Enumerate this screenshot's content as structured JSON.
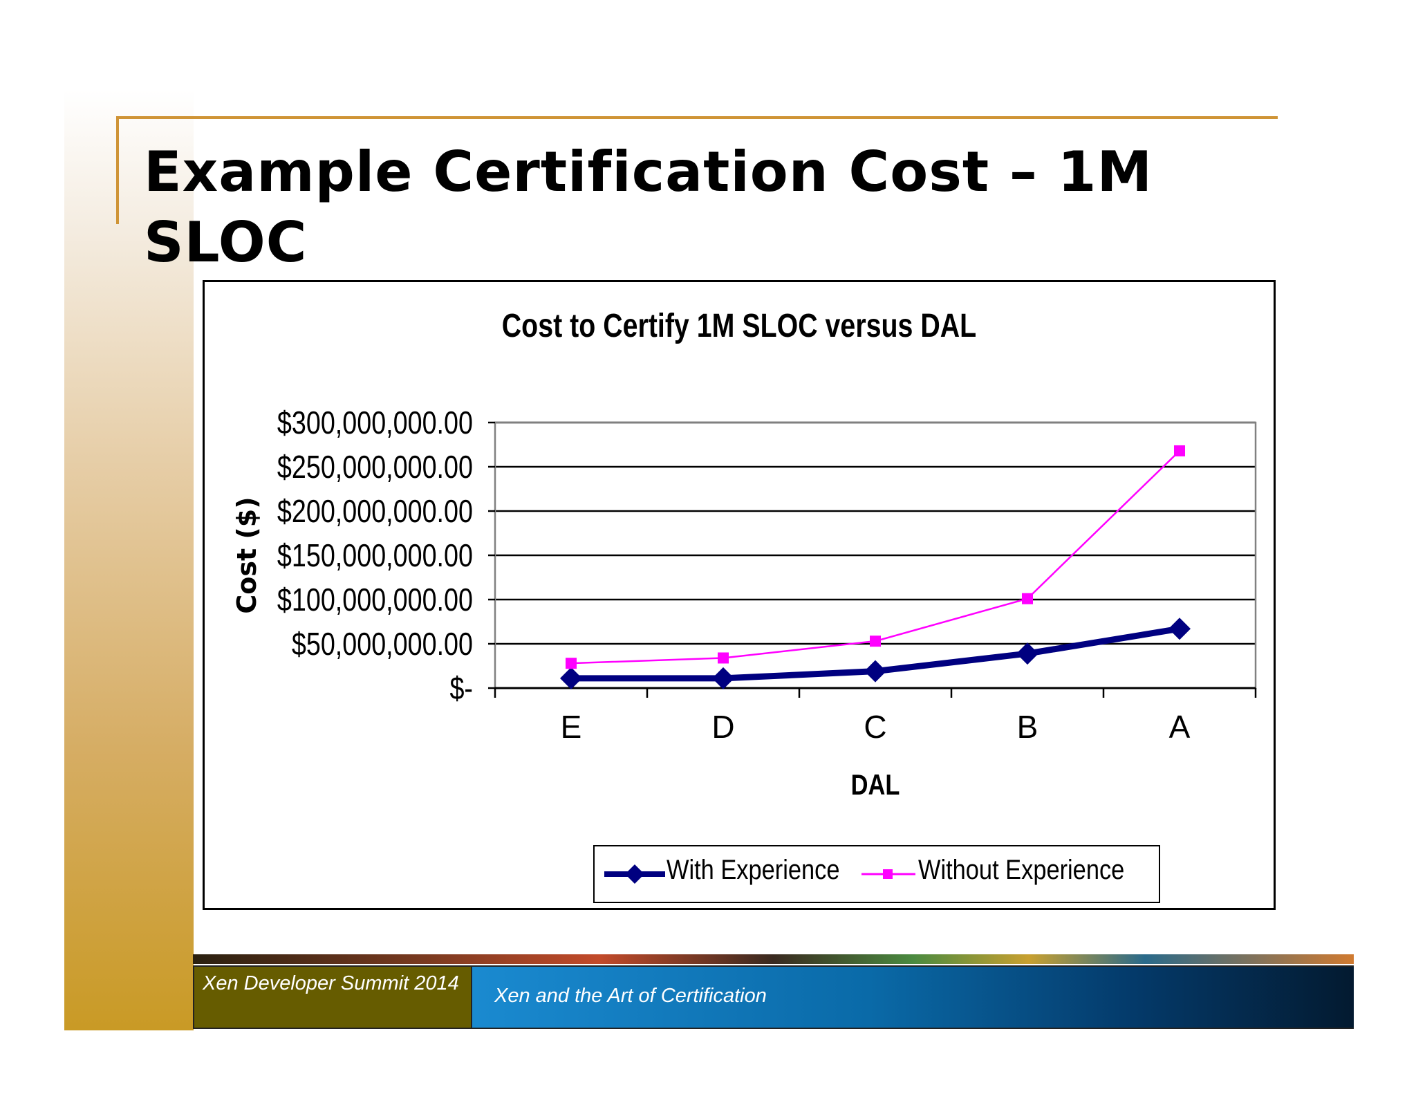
{
  "slide": {
    "title": "Example Certification Cost – 1M SLOC",
    "footer_left": "Xen Developer Summit 2014",
    "footer_right": "Xen and the Art of Certification"
  },
  "colors": {
    "accent_rule": "#cf9436",
    "footer_left_bg": "#665c00",
    "footer_right_bg": "#0a6aa8",
    "series_with": "#000080",
    "series_without": "#ff00ff"
  },
  "chart_data": {
    "type": "line",
    "title": "Cost to Certify 1M SLOC versus DAL",
    "xlabel": "DAL",
    "ylabel": "Cost ($)",
    "categories": [
      "E",
      "D",
      "C",
      "B",
      "A"
    ],
    "ylim": [
      0,
      300000000
    ],
    "y_ticks": [
      0,
      50000000,
      100000000,
      150000000,
      200000000,
      250000000,
      300000000
    ],
    "y_tick_labels": [
      "$-",
      "$50,000,000.00",
      "$100,000,000.00",
      "$150,000,000.00",
      "$200,000,000.00",
      "$250,000,000.00",
      "$300,000,000.00"
    ],
    "grid": true,
    "legend_position": "bottom",
    "series": [
      {
        "name": "With Experience",
        "values": [
          11000000,
          11000000,
          19000000,
          39000000,
          67000000
        ],
        "color": "#000080",
        "marker": "diamond"
      },
      {
        "name": "Without Experience",
        "values": [
          28000000,
          34000000,
          53000000,
          101000000,
          268000000
        ],
        "color": "#ff00ff",
        "marker": "square"
      }
    ]
  }
}
